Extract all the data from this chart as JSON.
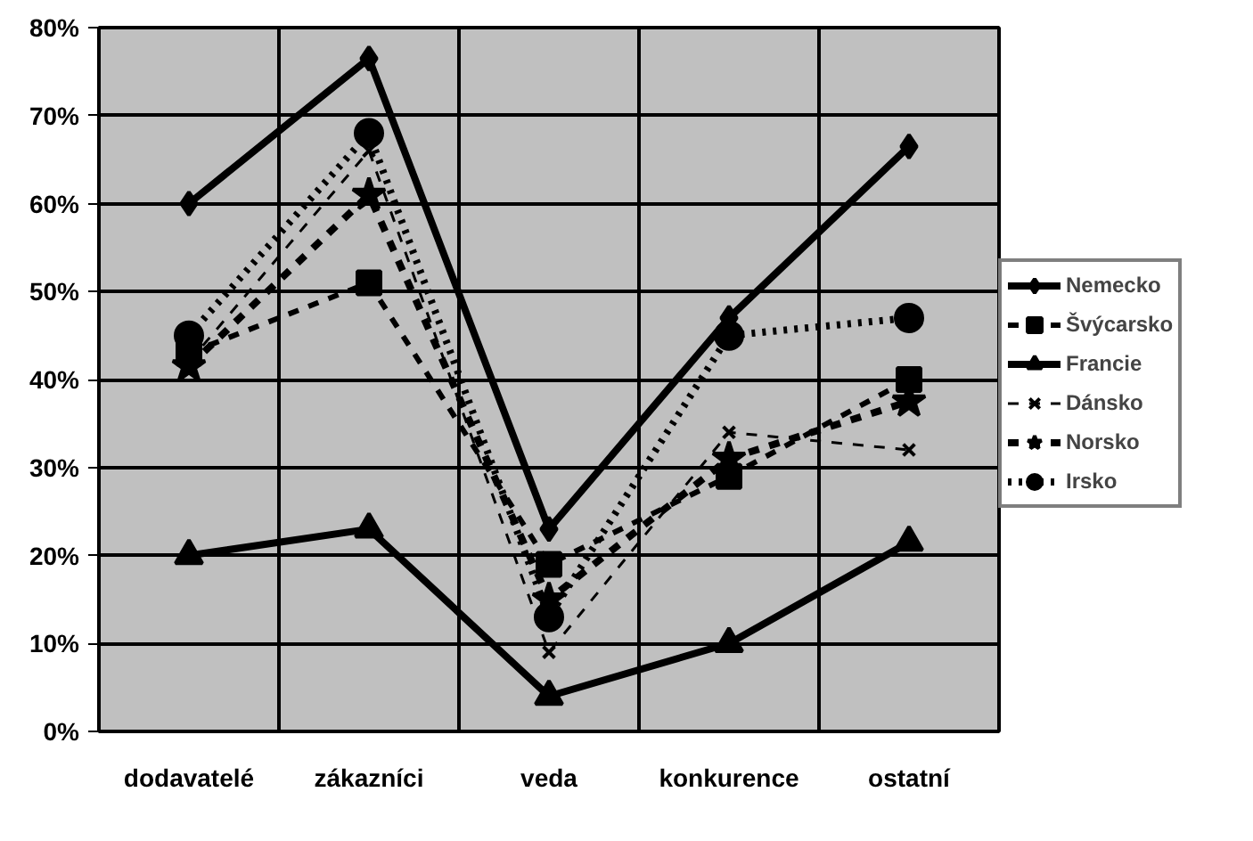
{
  "chart_data": {
    "type": "line",
    "categories": [
      "dodavatelé",
      "zákazníci",
      "veda",
      "konkurence",
      "ostatní"
    ],
    "ylim": [
      0,
      80
    ],
    "yticks": [
      {
        "value": 0,
        "label": "0%"
      },
      {
        "value": 10,
        "label": "10%"
      },
      {
        "value": 20,
        "label": "20%"
      },
      {
        "value": 30,
        "label": "30%"
      },
      {
        "value": 40,
        "label": "40%"
      },
      {
        "value": 50,
        "label": "50%"
      },
      {
        "value": 60,
        "label": "60%"
      },
      {
        "value": 70,
        "label": "70%"
      },
      {
        "value": 80,
        "label": "80%"
      }
    ],
    "grid": true,
    "legend": "right",
    "series": [
      {
        "name": "Nemecko",
        "color": "#000000",
        "marker": "diamond",
        "line_style": "solid",
        "values": [
          60,
          76.5,
          23,
          47,
          66.5
        ]
      },
      {
        "name": "Švýcarsko",
        "color": "#000000",
        "marker": "square",
        "line_style": "dashed",
        "values": [
          43,
          51,
          19,
          29,
          40
        ]
      },
      {
        "name": "Francie",
        "color": "#000000",
        "marker": "triangle",
        "line_style": "solid",
        "values": [
          20,
          23,
          4,
          10,
          21.5
        ]
      },
      {
        "name": "Dánsko",
        "color": "#000000",
        "marker": "cross",
        "line_style": "dashed",
        "values": [
          42,
          66,
          9,
          34,
          32
        ]
      },
      {
        "name": "Norsko",
        "color": "#000000",
        "marker": "star",
        "line_style": "dashed",
        "values": [
          41.5,
          61,
          15,
          31,
          37.5
        ]
      },
      {
        "name": "Irsko",
        "color": "#000000",
        "marker": "circle",
        "line_style": "dotted",
        "values": [
          45,
          68,
          13,
          45,
          47
        ]
      }
    ]
  }
}
